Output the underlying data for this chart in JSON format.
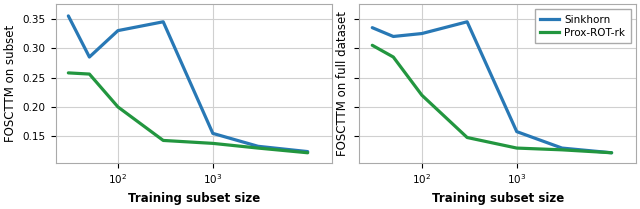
{
  "left": {
    "xlabel": "Training subset size",
    "ylabel": "FOSCTTM on subset",
    "x": [
      30,
      50,
      100,
      300,
      1000,
      3000,
      10000
    ],
    "sinkhorn": [
      0.355,
      0.285,
      0.33,
      0.345,
      0.155,
      0.133,
      0.124
    ],
    "prox_rot": [
      0.258,
      0.256,
      0.2,
      0.143,
      0.138,
      0.13,
      0.122
    ],
    "xlim": [
      22,
      18000
    ],
    "ylim": [
      0.105,
      0.375
    ]
  },
  "right": {
    "xlabel": "Training subset size",
    "ylabel": "FOSCTTM on full dataset",
    "x": [
      30,
      50,
      100,
      300,
      1000,
      3000,
      10000
    ],
    "sinkhorn": [
      0.335,
      0.32,
      0.325,
      0.345,
      0.158,
      0.13,
      0.122
    ],
    "prox_rot": [
      0.305,
      0.285,
      0.22,
      0.148,
      0.13,
      0.127,
      0.122
    ],
    "xlim": [
      22,
      18000
    ],
    "ylim": [
      0.105,
      0.375
    ]
  },
  "sinkhorn_color": "#2878b5",
  "prox_rot_color": "#22963f",
  "linewidth": 2.3,
  "background_color": "#ffffff",
  "grid_color": "#d0d0d0",
  "yticks": [
    0.15,
    0.2,
    0.25,
    0.3,
    0.35
  ],
  "legend_fontsize": 7.5,
  "axis_label_fontsize": 8.5,
  "tick_fontsize": 7.5
}
